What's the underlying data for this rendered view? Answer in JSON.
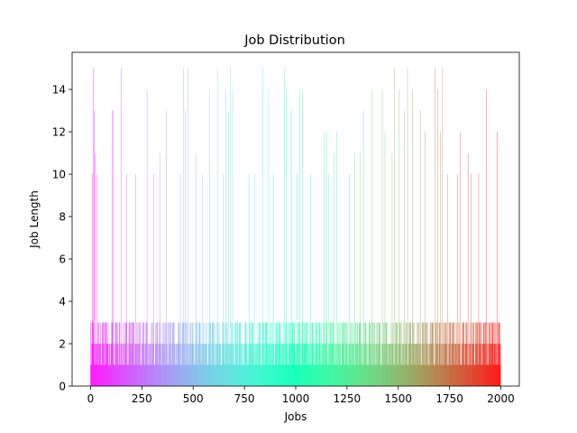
{
  "chart_data": {
    "type": "bar",
    "title": "Job Distribution",
    "xlabel": "Jobs",
    "ylabel": "Job Length",
    "xlim": [
      -90,
      2090
    ],
    "ylim": [
      0,
      15.75
    ],
    "xticks": [
      0,
      250,
      500,
      750,
      1000,
      1250,
      1500,
      1750,
      2000
    ],
    "yticks": [
      0,
      2,
      4,
      6,
      8,
      10,
      12,
      14
    ],
    "colormap": "rainbow",
    "grid": false,
    "legend": "none",
    "n_jobs": 2000,
    "tall_bars": [
      {
        "x": 2,
        "y": 3
      },
      {
        "x": 8,
        "y": 10
      },
      {
        "x": 14,
        "y": 15
      },
      {
        "x": 18,
        "y": 13
      },
      {
        "x": 22,
        "y": 11
      },
      {
        "x": 30,
        "y": 10
      },
      {
        "x": 45,
        "y": 2
      },
      {
        "x": 60,
        "y": 3
      },
      {
        "x": 72,
        "y": 3
      },
      {
        "x": 82,
        "y": 2
      },
      {
        "x": 95,
        "y": 1
      },
      {
        "x": 104,
        "y": 13
      },
      {
        "x": 110,
        "y": 13
      },
      {
        "x": 125,
        "y": 3
      },
      {
        "x": 140,
        "y": 1
      },
      {
        "x": 148,
        "y": 15
      },
      {
        "x": 160,
        "y": 3
      },
      {
        "x": 175,
        "y": 10
      },
      {
        "x": 190,
        "y": 3
      },
      {
        "x": 200,
        "y": 3
      },
      {
        "x": 210,
        "y": 3
      },
      {
        "x": 220,
        "y": 10
      },
      {
        "x": 240,
        "y": 3
      },
      {
        "x": 260,
        "y": 3
      },
      {
        "x": 275,
        "y": 14
      },
      {
        "x": 290,
        "y": 2
      },
      {
        "x": 308,
        "y": 10
      },
      {
        "x": 320,
        "y": 3
      },
      {
        "x": 338,
        "y": 11
      },
      {
        "x": 352,
        "y": 3
      },
      {
        "x": 370,
        "y": 13
      },
      {
        "x": 380,
        "y": 3
      },
      {
        "x": 392,
        "y": 3
      },
      {
        "x": 405,
        "y": 3
      },
      {
        "x": 420,
        "y": 2
      },
      {
        "x": 440,
        "y": 10
      },
      {
        "x": 452,
        "y": 15
      },
      {
        "x": 462,
        "y": 13
      },
      {
        "x": 475,
        "y": 15
      },
      {
        "x": 488,
        "y": 3
      },
      {
        "x": 502,
        "y": 3
      },
      {
        "x": 515,
        "y": 11
      },
      {
        "x": 530,
        "y": 3
      },
      {
        "x": 545,
        "y": 10
      },
      {
        "x": 560,
        "y": 2
      },
      {
        "x": 580,
        "y": 14
      },
      {
        "x": 592,
        "y": 3
      },
      {
        "x": 605,
        "y": 3
      },
      {
        "x": 618,
        "y": 15
      },
      {
        "x": 632,
        "y": 2
      },
      {
        "x": 645,
        "y": 10
      },
      {
        "x": 660,
        "y": 14
      },
      {
        "x": 672,
        "y": 13
      },
      {
        "x": 680,
        "y": 15
      },
      {
        "x": 692,
        "y": 14
      },
      {
        "x": 705,
        "y": 3
      },
      {
        "x": 718,
        "y": 3
      },
      {
        "x": 730,
        "y": 3
      },
      {
        "x": 745,
        "y": 1
      },
      {
        "x": 758,
        "y": 2
      },
      {
        "x": 772,
        "y": 10
      },
      {
        "x": 785,
        "y": 3
      },
      {
        "x": 798,
        "y": 10
      },
      {
        "x": 810,
        "y": 2
      },
      {
        "x": 825,
        "y": 3
      },
      {
        "x": 840,
        "y": 15
      },
      {
        "x": 852,
        "y": 3
      },
      {
        "x": 868,
        "y": 14
      },
      {
        "x": 880,
        "y": 3
      },
      {
        "x": 892,
        "y": 10
      },
      {
        "x": 905,
        "y": 3
      },
      {
        "x": 918,
        "y": 3
      },
      {
        "x": 932,
        "y": 2
      },
      {
        "x": 945,
        "y": 15
      },
      {
        "x": 955,
        "y": 14
      },
      {
        "x": 968,
        "y": 3
      },
      {
        "x": 980,
        "y": 13
      },
      {
        "x": 992,
        "y": 3
      },
      {
        "x": 1005,
        "y": 10
      },
      {
        "x": 1020,
        "y": 14
      },
      {
        "x": 1032,
        "y": 14
      },
      {
        "x": 1045,
        "y": 3
      },
      {
        "x": 1058,
        "y": 3
      },
      {
        "x": 1072,
        "y": 10
      },
      {
        "x": 1085,
        "y": 2
      },
      {
        "x": 1098,
        "y": 3
      },
      {
        "x": 1112,
        "y": 2
      },
      {
        "x": 1125,
        "y": 3
      },
      {
        "x": 1138,
        "y": 12
      },
      {
        "x": 1150,
        "y": 12
      },
      {
        "x": 1162,
        "y": 10
      },
      {
        "x": 1175,
        "y": 3
      },
      {
        "x": 1188,
        "y": 11
      },
      {
        "x": 1200,
        "y": 12
      },
      {
        "x": 1212,
        "y": 3
      },
      {
        "x": 1225,
        "y": 3
      },
      {
        "x": 1238,
        "y": 3
      },
      {
        "x": 1250,
        "y": 2
      },
      {
        "x": 1262,
        "y": 10
      },
      {
        "x": 1275,
        "y": 3
      },
      {
        "x": 1288,
        "y": 11
      },
      {
        "x": 1300,
        "y": 3
      },
      {
        "x": 1315,
        "y": 11
      },
      {
        "x": 1332,
        "y": 13
      },
      {
        "x": 1345,
        "y": 2
      },
      {
        "x": 1360,
        "y": 3
      },
      {
        "x": 1372,
        "y": 14
      },
      {
        "x": 1385,
        "y": 3
      },
      {
        "x": 1398,
        "y": 3
      },
      {
        "x": 1410,
        "y": 3
      },
      {
        "x": 1422,
        "y": 14
      },
      {
        "x": 1435,
        "y": 12
      },
      {
        "x": 1448,
        "y": 3
      },
      {
        "x": 1460,
        "y": 2
      },
      {
        "x": 1470,
        "y": 11
      },
      {
        "x": 1480,
        "y": 15
      },
      {
        "x": 1492,
        "y": 3
      },
      {
        "x": 1505,
        "y": 14
      },
      {
        "x": 1515,
        "y": 3
      },
      {
        "x": 1530,
        "y": 13
      },
      {
        "x": 1545,
        "y": 15
      },
      {
        "x": 1558,
        "y": 3
      },
      {
        "x": 1570,
        "y": 14
      },
      {
        "x": 1582,
        "y": 2
      },
      {
        "x": 1595,
        "y": 3
      },
      {
        "x": 1608,
        "y": 13
      },
      {
        "x": 1620,
        "y": 3
      },
      {
        "x": 1632,
        "y": 12
      },
      {
        "x": 1645,
        "y": 1
      },
      {
        "x": 1658,
        "y": 3
      },
      {
        "x": 1670,
        "y": 3
      },
      {
        "x": 1680,
        "y": 15
      },
      {
        "x": 1692,
        "y": 14
      },
      {
        "x": 1704,
        "y": 12
      },
      {
        "x": 1716,
        "y": 15
      },
      {
        "x": 1728,
        "y": 3
      },
      {
        "x": 1740,
        "y": 10
      },
      {
        "x": 1752,
        "y": 3
      },
      {
        "x": 1765,
        "y": 3
      },
      {
        "x": 1778,
        "y": 3
      },
      {
        "x": 1790,
        "y": 10
      },
      {
        "x": 1802,
        "y": 12
      },
      {
        "x": 1815,
        "y": 3
      },
      {
        "x": 1828,
        "y": 2
      },
      {
        "x": 1840,
        "y": 11
      },
      {
        "x": 1855,
        "y": 10
      },
      {
        "x": 1868,
        "y": 3
      },
      {
        "x": 1880,
        "y": 3
      },
      {
        "x": 1892,
        "y": 10
      },
      {
        "x": 1905,
        "y": 3
      },
      {
        "x": 1918,
        "y": 3
      },
      {
        "x": 1930,
        "y": 14
      },
      {
        "x": 1942,
        "y": 3
      },
      {
        "x": 1955,
        "y": 3
      },
      {
        "x": 1965,
        "y": 2
      },
      {
        "x": 1972,
        "y": 3
      },
      {
        "x": 1982,
        "y": 12
      },
      {
        "x": 1990,
        "y": 3
      }
    ],
    "baseline_cycle": [
      1,
      2,
      1,
      3,
      2,
      1,
      2,
      3,
      1,
      2,
      2,
      1,
      3,
      1,
      2,
      1,
      1,
      3,
      2,
      1
    ]
  }
}
